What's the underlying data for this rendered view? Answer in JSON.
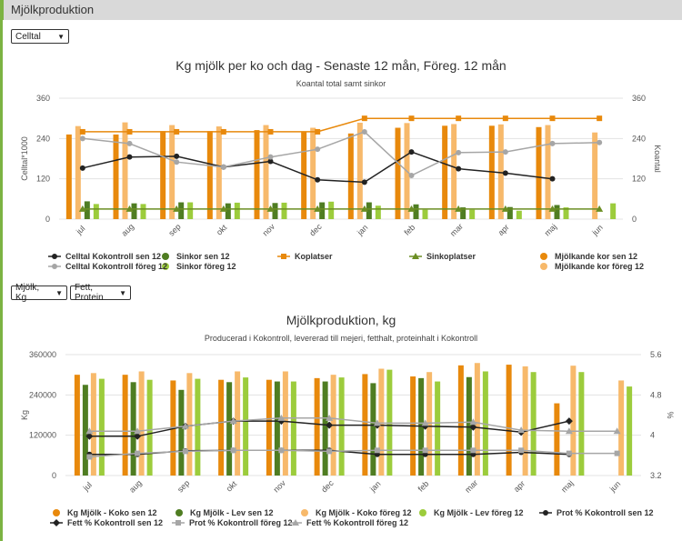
{
  "header": {
    "title": "Mjölkproduktion"
  },
  "selectors": {
    "chart1_select": "Celltal",
    "chart2_select_a": "Mjölk, Kg",
    "chart2_select_b": "Fett, Protein"
  },
  "chart_data": [
    {
      "type": "bar",
      "title": "Kg mjölk per ko och dag - Senaste 12 mån, Föreg. 12 mån",
      "subtitle": "Koantal total samt sinkor",
      "ylabel": "Celltal*1000",
      "ylabel_right": "Koantal",
      "ylim": [
        0,
        360
      ],
      "ylim_right": [
        0,
        360
      ],
      "yticks": [
        0,
        120,
        240,
        360
      ],
      "categories": [
        "jul",
        "aug",
        "sep",
        "okt",
        "nov",
        "dec",
        "jan",
        "feb",
        "mar",
        "apr",
        "maj",
        "jun"
      ],
      "series": [
        {
          "name": "Mjölkande kor sen 12",
          "kind": "bar",
          "axis": "right",
          "color": "#e8890c",
          "values": [
            252,
            252,
            262,
            262,
            265,
            260,
            255,
            272,
            278,
            278,
            274,
            null
          ]
        },
        {
          "name": "Mjölkande kor föreg 12",
          "kind": "bar",
          "axis": "right",
          "color": "#f7b96b",
          "values": [
            277,
            288,
            280,
            276,
            280,
            272,
            287,
            286,
            283,
            282,
            280,
            258
          ]
        },
        {
          "name": "Sinkor sen 12",
          "kind": "bar",
          "axis": "right",
          "color": "#4f7d22",
          "values": [
            53,
            47,
            50,
            47,
            48,
            50,
            50,
            44,
            35,
            36,
            42,
            null
          ]
        },
        {
          "name": "Sinkor föreg 12",
          "kind": "bar",
          "axis": "right",
          "color": "#9ccc3c",
          "values": [
            45,
            45,
            50,
            49,
            49,
            52,
            40,
            28,
            28,
            25,
            35,
            47
          ]
        },
        {
          "name": "Celltal Kokontroll sen 12",
          "kind": "line",
          "axis": "left",
          "color": "#222222",
          "marker": "circle",
          "values": [
            152,
            185,
            187,
            155,
            172,
            117,
            110,
            200,
            150,
            137,
            120,
            null
          ]
        },
        {
          "name": "Celltal Kokontroll föreg 12",
          "kind": "line",
          "axis": "left",
          "color": "#a6a6a6",
          "marker": "circle",
          "values": [
            240,
            225,
            170,
            155,
            185,
            208,
            260,
            130,
            198,
            200,
            225,
            228
          ]
        },
        {
          "name": "Koplatser",
          "kind": "line",
          "axis": "right",
          "color": "#e8890c",
          "marker": "square",
          "values": [
            260,
            260,
            260,
            260,
            260,
            260,
            300,
            300,
            300,
            300,
            300,
            300
          ]
        },
        {
          "name": "Sinkoplatser",
          "kind": "line",
          "axis": "right",
          "color": "#6b8e23",
          "marker": "triangle",
          "values": [
            30,
            30,
            30,
            30,
            30,
            30,
            30,
            30,
            30,
            30,
            30,
            30
          ]
        }
      ]
    },
    {
      "type": "bar",
      "title": "Mjölkproduktion, kg",
      "subtitle": "Producerad i Kokontroll, levererad till mejeri, fetthalt, proteinhalt i Kokontroll",
      "ylabel": "Kg",
      "ylabel_right": "%",
      "ylim": [
        0,
        360000
      ],
      "ylim_right": [
        3.2,
        5.6
      ],
      "yticks": [
        "0",
        "120000",
        "240000",
        "360000"
      ],
      "yticks_right": [
        "3.2",
        "4",
        "4.8",
        "5.6"
      ],
      "categories": [
        "jul",
        "aug",
        "sep",
        "okt",
        "nov",
        "dec",
        "jan",
        "feb",
        "mar",
        "apr",
        "maj",
        "jun"
      ],
      "series": [
        {
          "name": "Kg Mjölk - Koko sen 12",
          "kind": "bar",
          "axis": "left",
          "color": "#e8890c",
          "values": [
            300000,
            300000,
            283000,
            285000,
            285000,
            290000,
            302000,
            295000,
            328000,
            330000,
            215000,
            null
          ]
        },
        {
          "name": "Kg Mjölk - Lev sen 12",
          "kind": "bar",
          "axis": "left",
          "color": "#4f7d22",
          "values": [
            270000,
            278000,
            255000,
            278000,
            280000,
            280000,
            275000,
            290000,
            293000,
            null,
            null,
            null
          ]
        },
        {
          "name": "Kg Mjölk - Koko föreg 12",
          "kind": "bar",
          "axis": "left",
          "color": "#f7b96b",
          "values": [
            305000,
            310000,
            305000,
            310000,
            310000,
            300000,
            318000,
            308000,
            335000,
            325000,
            327000,
            283000
          ]
        },
        {
          "name": "Kg Mjölk - Lev föreg 12",
          "kind": "bar",
          "axis": "left",
          "color": "#9ccc3c",
          "values": [
            288000,
            285000,
            288000,
            292000,
            280000,
            292000,
            315000,
            280000,
            310000,
            308000,
            308000,
            265000
          ]
        },
        {
          "name": "Prot % Kokontroll sen 12",
          "kind": "line",
          "axis": "right",
          "color": "#222222",
          "marker": "circle",
          "values": [
            3.62,
            3.62,
            3.69,
            3.7,
            3.7,
            3.7,
            3.62,
            3.62,
            3.62,
            3.66,
            3.62,
            null
          ]
        },
        {
          "name": "Fett % Kokontroll sen 12",
          "kind": "line",
          "axis": "right",
          "color": "#222222",
          "marker": "diamond",
          "values": [
            3.98,
            3.98,
            4.18,
            4.28,
            4.28,
            4.2,
            4.2,
            4.18,
            4.16,
            4.06,
            4.28,
            null
          ]
        },
        {
          "name": "Prot % Kokontroll föreg 12",
          "kind": "line",
          "axis": "right",
          "color": "#a6a6a6",
          "marker": "square",
          "values": [
            3.57,
            3.64,
            3.68,
            3.7,
            3.7,
            3.68,
            3.7,
            3.7,
            3.7,
            3.7,
            3.64,
            3.64
          ]
        },
        {
          "name": "Fett % Kokontroll föreg 12",
          "kind": "line",
          "axis": "right",
          "color": "#a6a6a6",
          "marker": "triangle",
          "values": [
            4.08,
            4.08,
            4.18,
            4.28,
            4.34,
            4.34,
            4.24,
            4.24,
            4.26,
            4.1,
            4.08,
            4.08
          ]
        }
      ]
    }
  ]
}
